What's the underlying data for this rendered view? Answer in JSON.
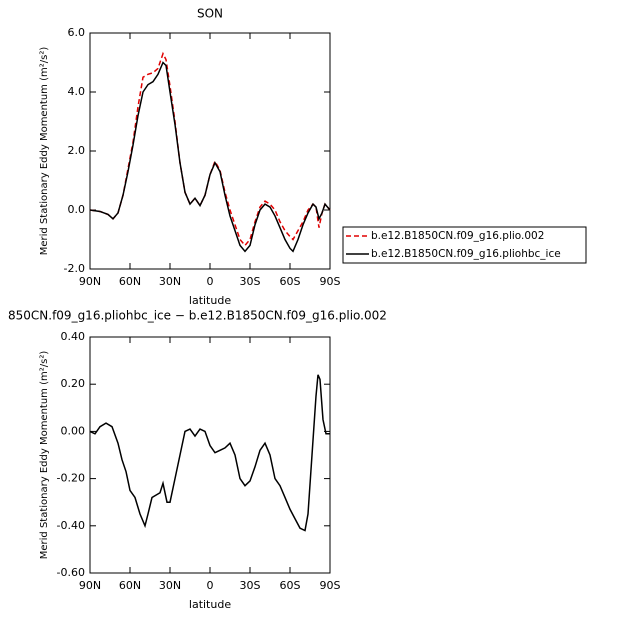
{
  "chart_data": [
    {
      "type": "line",
      "title": "SON",
      "xlabel": "latitude",
      "ylabel": "Merid Stationary Eddy Momentum (m²/s²)",
      "x": [
        90,
        82.5,
        76.5,
        72.75,
        69,
        65.25,
        61.5,
        57.75,
        54,
        50.25,
        46.5,
        42.75,
        39,
        35.25,
        33,
        30,
        26.25,
        22.5,
        18.75,
        15,
        11.25,
        7.5,
        3.75,
        0,
        -3.75,
        -7.5,
        -11.25,
        -15,
        -18.75,
        -22.5,
        -26.25,
        -30,
        -33.75,
        -37.5,
        -41.25,
        -45,
        -48.75,
        -52.5,
        -56.25,
        -60,
        -62.25,
        -66,
        -69.75,
        -73.5,
        -77.25,
        -79.5,
        -81.75,
        -84,
        -86.25,
        -90
      ],
      "series": [
        {
          "name": "b.e12.B1850CN.f09_g16.plio.002",
          "color": "#e00000",
          "dashed": true,
          "values": [
            0,
            -0.05,
            -0.15,
            -0.3,
            -0.1,
            0.5,
            1.4,
            2.3,
            3.5,
            4.5,
            4.6,
            4.65,
            4.8,
            5.3,
            5.1,
            4.2,
            3.0,
            1.6,
            0.6,
            0.2,
            0.4,
            0.15,
            0.5,
            1.2,
            1.65,
            1.35,
            0.6,
            0.0,
            -0.5,
            -1.0,
            -1.2,
            -1.0,
            -0.4,
            0.1,
            0.3,
            0.2,
            0.0,
            -0.4,
            -0.7,
            -0.9,
            -1.0,
            -0.7,
            -0.4,
            0.0,
            0.2,
            0.1,
            -0.6,
            -0.1,
            0.2,
            0
          ]
        },
        {
          "name": "b.e12.B1850CN.f09_g16.pliohbc_ice",
          "color": "#000000",
          "dashed": false,
          "values": [
            0,
            -0.05,
            -0.15,
            -0.3,
            -0.1,
            0.5,
            1.3,
            2.2,
            3.2,
            4.0,
            4.25,
            4.35,
            4.6,
            5.0,
            4.9,
            4.0,
            2.9,
            1.6,
            0.6,
            0.2,
            0.4,
            0.15,
            0.5,
            1.2,
            1.6,
            1.3,
            0.5,
            -0.2,
            -0.7,
            -1.2,
            -1.4,
            -1.2,
            -0.5,
            0.0,
            0.2,
            0.1,
            -0.2,
            -0.6,
            -1.0,
            -1.3,
            -1.4,
            -1.0,
            -0.5,
            -0.1,
            0.2,
            0.1,
            -0.3,
            -0.1,
            0.2,
            0
          ]
        }
      ],
      "xlim": [
        90,
        -90
      ],
      "xticks": [
        {
          "value": 90,
          "label": "90N"
        },
        {
          "value": 60,
          "label": "60N"
        },
        {
          "value": 30,
          "label": "30N"
        },
        0,
        {
          "value": -30,
          "label": "30S"
        },
        {
          "value": -60,
          "label": "60S"
        },
        {
          "value": -90,
          "label": "90S"
        }
      ],
      "ylim": [
        -2,
        6
      ],
      "yticks": [
        {
          "value": -2,
          "label": "-2.0"
        },
        {
          "value": 0,
          "label": "0.0"
        },
        {
          "value": 2,
          "label": "2.0"
        },
        {
          "value": 4,
          "label": "4.0"
        },
        {
          "value": 6,
          "label": "6.0"
        }
      ],
      "legend": "right"
    },
    {
      "type": "line",
      "title": "850CN.f09_g16.pliohbc_ice − b.e12.B1850CN.f09_g16.plio.002",
      "xlabel": "latitude",
      "ylabel": "Merid Stationary Eddy Momentum (m²/s²)",
      "x": [
        90,
        86.25,
        82.5,
        78,
        73.5,
        69,
        66,
        63,
        60,
        56.25,
        52.5,
        48.75,
        46.5,
        43.5,
        40.5,
        37.5,
        35.25,
        32.25,
        30,
        26.25,
        22.5,
        18.75,
        15,
        11.25,
        7.5,
        3.75,
        0,
        -3.75,
        -7.5,
        -11.25,
        -15,
        -18.75,
        -22.5,
        -26.25,
        -30,
        -33.75,
        -37.5,
        -41.25,
        -45,
        -48.75,
        -52.5,
        -56.25,
        -60,
        -63.75,
        -67.5,
        -71.25,
        -73.5,
        -76.5,
        -79.5,
        -81,
        -82.5,
        -84.75,
        -87,
        -90
      ],
      "values": [
        0,
        -0.01,
        0.02,
        0.035,
        0.02,
        -0.05,
        -0.12,
        -0.17,
        -0.25,
        -0.28,
        -0.35,
        -0.4,
        -0.35,
        -0.28,
        -0.27,
        -0.26,
        -0.22,
        -0.3,
        -0.3,
        -0.2,
        -0.1,
        0.0,
        0.01,
        -0.02,
        0.01,
        0.0,
        -0.06,
        -0.09,
        -0.08,
        -0.07,
        -0.05,
        -0.1,
        -0.2,
        -0.23,
        -0.21,
        -0.15,
        -0.08,
        -0.05,
        -0.1,
        -0.2,
        -0.23,
        -0.28,
        -0.33,
        -0.37,
        -0.41,
        -0.42,
        -0.35,
        -0.1,
        0.15,
        0.24,
        0.22,
        0.05,
        -0.01,
        -0.01
      ],
      "color": "#000000",
      "xlim": [
        90,
        -90
      ],
      "xticks": [
        {
          "value": 90,
          "label": "90N"
        },
        {
          "value": 60,
          "label": "60N"
        },
        {
          "value": 30,
          "label": "30N"
        },
        0,
        {
          "value": -30,
          "label": "30S"
        },
        {
          "value": -60,
          "label": "60S"
        },
        {
          "value": -90,
          "label": "90S"
        }
      ],
      "ylim": [
        -0.6,
        0.4
      ],
      "yticks": [
        {
          "value": -0.6,
          "label": "-0.60"
        },
        {
          "value": -0.4,
          "label": "-0.40"
        },
        {
          "value": -0.2,
          "label": "-0.20"
        },
        {
          "value": 0,
          "label": "0.00"
        },
        {
          "value": 0.2,
          "label": "0.20"
        },
        {
          "value": 0.4,
          "label": "0.40"
        }
      ]
    }
  ]
}
